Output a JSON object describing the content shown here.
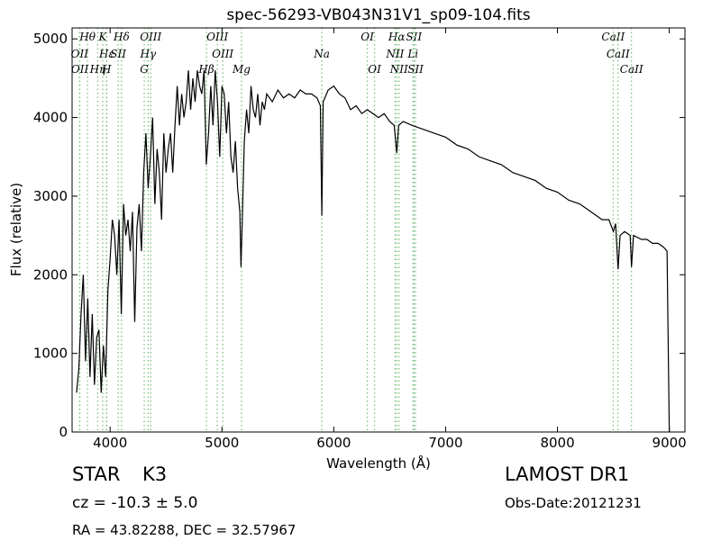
{
  "chart_data": {
    "type": "line",
    "title": "spec-56293-VB043N31V1_sp09-104.fits",
    "xlabel": "Wavelength (Å)",
    "ylabel": "Flux (relative)",
    "xlim": [
      3660,
      9140
    ],
    "ylim": [
      0,
      5140
    ],
    "xticks": [
      4000,
      5000,
      6000,
      7000,
      8000,
      9000
    ],
    "yticks": [
      0,
      1000,
      2000,
      3000,
      4000,
      5000
    ],
    "line_color": "#77bb77",
    "line_markers": [
      [
        {
          "label": "Hθ",
          "wavelength": 3798
        },
        {
          "label": "K",
          "wavelength": 3934
        },
        {
          "label": "Hδ",
          "wavelength": 4102
        },
        {
          "label": "OIII",
          "wavelength": 4363
        },
        {
          "label": "OIII",
          "wavelength": 4959
        },
        {
          "label": "OI",
          "wavelength": 6300
        },
        {
          "label": "Hα",
          "wavelength": 6563
        },
        {
          "label": "SII",
          "wavelength": 6716
        },
        {
          "label": "CaII",
          "wavelength": 8498
        }
      ],
      [
        {
          "label": "OII",
          "wavelength": 3727
        },
        {
          "label": "Hε",
          "wavelength": 3970
        },
        {
          "label": "SII",
          "wavelength": 4072
        },
        {
          "label": "Hγ",
          "wavelength": 4340
        },
        {
          "label": "OIII",
          "wavelength": 5007
        },
        {
          "label": "Na",
          "wavelength": 5893
        },
        {
          "label": "NII",
          "wavelength": 6548
        },
        {
          "label": "Li",
          "wavelength": 6708
        },
        {
          "label": "CaII",
          "wavelength": 8542
        }
      ],
      [
        {
          "label": "OII",
          "wavelength": 3729
        },
        {
          "label": "Hη",
          "wavelength": 3889
        },
        {
          "label": "H",
          "wavelength": 3968
        },
        {
          "label": "G",
          "wavelength": 4305
        },
        {
          "label": "Hβ",
          "wavelength": 4861
        },
        {
          "label": "Mg",
          "wavelength": 5175
        },
        {
          "label": "OI",
          "wavelength": 6364
        },
        {
          "label": "NII",
          "wavelength": 6583
        },
        {
          "label": "SII",
          "wavelength": 6731
        },
        {
          "label": "CaII",
          "wavelength": 8662
        }
      ]
    ],
    "series": [
      {
        "name": "Flux",
        "color": "#000000",
        "x": [
          3700,
          3720,
          3740,
          3760,
          3780,
          3800,
          3820,
          3840,
          3860,
          3880,
          3900,
          3920,
          3940,
          3960,
          3980,
          4000,
          4020,
          4040,
          4060,
          4080,
          4100,
          4120,
          4140,
          4160,
          4180,
          4200,
          4220,
          4240,
          4260,
          4280,
          4300,
          4320,
          4340,
          4360,
          4380,
          4400,
          4420,
          4440,
          4460,
          4480,
          4500,
          4520,
          4540,
          4560,
          4580,
          4600,
          4620,
          4640,
          4660,
          4680,
          4700,
          4720,
          4740,
          4760,
          4780,
          4800,
          4820,
          4840,
          4860,
          4880,
          4900,
          4920,
          4940,
          4960,
          4980,
          5000,
          5020,
          5040,
          5060,
          5080,
          5100,
          5120,
          5140,
          5160,
          5170,
          5180,
          5200,
          5220,
          5240,
          5260,
          5280,
          5300,
          5320,
          5340,
          5360,
          5380,
          5400,
          5450,
          5500,
          5550,
          5600,
          5650,
          5700,
          5750,
          5800,
          5850,
          5880,
          5893,
          5905,
          5950,
          6000,
          6050,
          6100,
          6150,
          6200,
          6250,
          6300,
          6350,
          6400,
          6450,
          6500,
          6540,
          6563,
          6580,
          6620,
          6700,
          6800,
          6900,
          7000,
          7100,
          7200,
          7300,
          7400,
          7500,
          7600,
          7700,
          7800,
          7900,
          8000,
          8100,
          8200,
          8300,
          8400,
          8460,
          8500,
          8520,
          8542,
          8560,
          8600,
          8650,
          8662,
          8680,
          8750,
          8800,
          8850,
          8900,
          8950,
          8980,
          9000
        ],
        "values": [
          500,
          800,
          1500,
          2000,
          900,
          1700,
          700,
          1500,
          600,
          1200,
          1300,
          500,
          1100,
          700,
          1800,
          2200,
          2700,
          2500,
          2000,
          2700,
          1500,
          2900,
          2500,
          2700,
          2300,
          2800,
          1400,
          2600,
          2900,
          2300,
          3300,
          3800,
          3100,
          3500,
          4000,
          2900,
          3600,
          3300,
          2700,
          3800,
          3300,
          3600,
          3800,
          3300,
          3900,
          4400,
          3900,
          4300,
          4000,
          4200,
          4600,
          4100,
          4500,
          4200,
          4600,
          4400,
          4300,
          4600,
          3400,
          3800,
          4400,
          3900,
          4600,
          4200,
          3500,
          4400,
          4300,
          3800,
          4200,
          3500,
          3300,
          3700,
          3100,
          2800,
          2100,
          2600,
          3700,
          4100,
          3800,
          4400,
          4100,
          4000,
          4300,
          3900,
          4200,
          4100,
          4300,
          4200,
          4350,
          4250,
          4300,
          4250,
          4350,
          4300,
          4300,
          4250,
          4150,
          2750,
          4200,
          4350,
          4400,
          4300,
          4250,
          4100,
          4150,
          4050,
          4100,
          4050,
          4000,
          4050,
          3950,
          3900,
          3550,
          3900,
          3950,
          3900,
          3850,
          3800,
          3750,
          3650,
          3600,
          3500,
          3450,
          3400,
          3300,
          3250,
          3200,
          3100,
          3050,
          2950,
          2900,
          2800,
          2700,
          2700,
          2550,
          2650,
          2070,
          2500,
          2550,
          2500,
          2100,
          2500,
          2450,
          2450,
          2400,
          2400,
          2350,
          2300,
          0
        ]
      }
    ]
  },
  "info": {
    "class": "STAR",
    "subclass": "K3",
    "cz": "cz = -10.3 ± 5.0",
    "coords": "RA = 43.82288, DEC = 32.57967",
    "survey": "LAMOST DR1",
    "obs_date": "Obs-Date:20121231"
  }
}
